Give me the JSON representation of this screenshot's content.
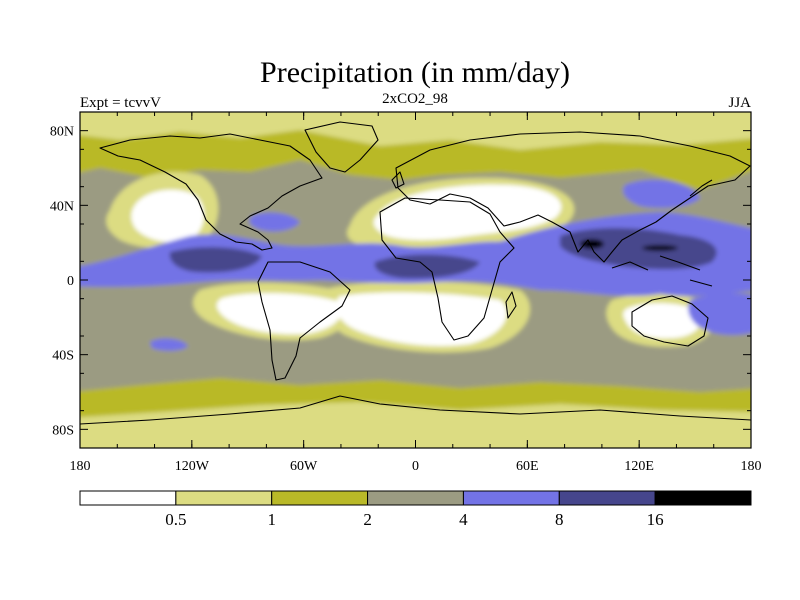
{
  "title": "Precipitation (in mm/day)",
  "left_label": "Expt = tcvvV",
  "center_label": "2xCO2_98",
  "right_label": "JJA",
  "map": {
    "projection": "cylindrical equidistant",
    "lon_range": [
      -180,
      180
    ],
    "lat_range": [
      -90,
      90
    ],
    "lon_ticks": [
      {
        "value": -180,
        "label": "180"
      },
      {
        "value": -120,
        "label": "120W"
      },
      {
        "value": -60,
        "label": "60W"
      },
      {
        "value": 0,
        "label": "0"
      },
      {
        "value": 60,
        "label": "60E"
      },
      {
        "value": 120,
        "label": "120E"
      },
      {
        "value": 180,
        "label": "180"
      }
    ],
    "lat_ticks": [
      {
        "value": 80,
        "label": "80N"
      },
      {
        "value": 40,
        "label": "40N"
      },
      {
        "value": 0,
        "label": "0"
      },
      {
        "value": -40,
        "label": "40S"
      },
      {
        "value": -80,
        "label": "80S"
      }
    ]
  },
  "colorbar": {
    "levels": [
      0.5,
      1,
      2,
      4,
      8,
      16
    ],
    "labels": [
      "0.5",
      "1",
      "2",
      "4",
      "8",
      "16"
    ],
    "colors": [
      "#ffffff",
      "#dcdc82",
      "#b9b928",
      "#9b9b82",
      "#7373e6",
      "#46468c",
      "#000000"
    ]
  },
  "chart_data": {
    "type": "heatmap",
    "title": "Precipitation (in mm/day)",
    "xlabel": "",
    "ylabel": "",
    "xlim": [
      -180,
      180
    ],
    "ylim": [
      -90,
      90
    ],
    "grid": false,
    "bin_edges": [
      0.5,
      1,
      2,
      4,
      8,
      16
    ],
    "regions": [
      {
        "band": "<0.5",
        "lon": [
          -140,
          -110
        ],
        "lat": [
          20,
          45
        ]
      },
      {
        "band": "<0.5",
        "lon": [
          -22,
          40
        ],
        "lat": [
          14,
          35
        ]
      },
      {
        "band": "<0.5",
        "lon": [
          40,
          75
        ],
        "lat": [
          20,
          30
        ]
      },
      {
        "band": "<0.5",
        "lon": [
          -105,
          -80
        ],
        "lat": [
          -25,
          -8
        ]
      },
      {
        "band": "<0.5",
        "lon": [
          -45,
          45
        ],
        "lat": [
          -30,
          -5
        ]
      },
      {
        "band": "<0.5",
        "lon": [
          115,
          145
        ],
        "lat": [
          -35,
          -18
        ]
      },
      {
        "band": "4-8",
        "lon": [
          -180,
          -20
        ],
        "lat": [
          3,
          17
        ]
      },
      {
        "band": "4-8",
        "lon": [
          60,
          180
        ],
        "lat": [
          0,
          30
        ]
      },
      {
        "band": "8-16",
        "lon": [
          -140,
          -90
        ],
        "lat": [
          3,
          15
        ]
      },
      {
        "band": "8-16",
        "lon": [
          -30,
          40
        ],
        "lat": [
          2,
          13
        ]
      },
      {
        "band": "8-16",
        "lon": [
          80,
          150
        ],
        "lat": [
          10,
          27
        ]
      },
      {
        "band": ">16",
        "lon": [
          85,
          95
        ],
        "lat": [
          20,
          25
        ]
      }
    ]
  }
}
